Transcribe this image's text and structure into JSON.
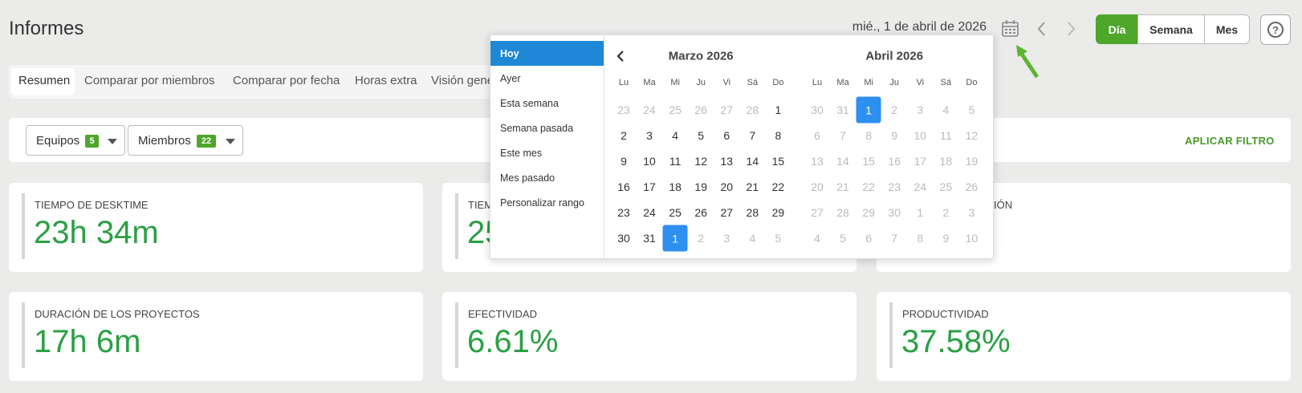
{
  "header": {
    "title": "Informes",
    "date": "mié., 1 de abril de 2026",
    "view_buttons": [
      "Día",
      "Semana",
      "Mes"
    ],
    "help": "?"
  },
  "tabs": [
    "Resumen",
    "Comparar por miembros",
    "Comparar por fecha",
    "Horas extra",
    "Visión general"
  ],
  "filters": {
    "teams": {
      "label": "Equipos",
      "count": 5
    },
    "members": {
      "label": "Miembros",
      "count": 22
    },
    "apply": "APLICAR FILTRO"
  },
  "cards": [
    {
      "label": "TIEMPO DE DESKTIME",
      "value": "23h 34m"
    },
    {
      "label": "TIEM",
      "value": "25"
    },
    {
      "label": "IÓN"
    },
    {
      "label": "DURACIÓN DE LOS PROYECTOS",
      "value": "17h 6m"
    },
    {
      "label": "EFECTIVIDAD",
      "value": "6.61%"
    },
    {
      "label": "PRODUCTIVIDAD",
      "value": "37.58%"
    }
  ],
  "date_picker": {
    "presets": [
      "Hoy",
      "Ayer",
      "Esta semana",
      "Semana pasada",
      "Este mes",
      "Mes pasado",
      "Personalizar rango"
    ],
    "months": [
      {
        "title": "Marzo 2026",
        "weekdays": [
          "Lu",
          "Ma",
          "Mi",
          "Ju",
          "Vi",
          "Sá",
          "Do"
        ],
        "weeks": [
          [
            23,
            24,
            25,
            26,
            27,
            28,
            1
          ],
          [
            2,
            3,
            4,
            5,
            6,
            7,
            8
          ],
          [
            9,
            10,
            11,
            12,
            13,
            14,
            15
          ],
          [
            16,
            17,
            18,
            19,
            20,
            21,
            22
          ],
          [
            23,
            24,
            25,
            26,
            27,
            28,
            29
          ],
          [
            30,
            31,
            1,
            2,
            3,
            4,
            5
          ]
        ]
      },
      {
        "title": "Abril 2026",
        "weekdays": [
          "Lu",
          "Ma",
          "Mi",
          "Ju",
          "Vi",
          "Sá",
          "Do"
        ],
        "weeks": [
          [
            30,
            31,
            1,
            2,
            3,
            4,
            5
          ],
          [
            6,
            7,
            8,
            9,
            10,
            11,
            12
          ],
          [
            13,
            14,
            15,
            16,
            17,
            18,
            19
          ],
          [
            20,
            21,
            22,
            23,
            24,
            25,
            26
          ],
          [
            27,
            28,
            29,
            30,
            1,
            2,
            3
          ],
          [
            4,
            5,
            6,
            7,
            8,
            9,
            10
          ]
        ]
      }
    ]
  }
}
